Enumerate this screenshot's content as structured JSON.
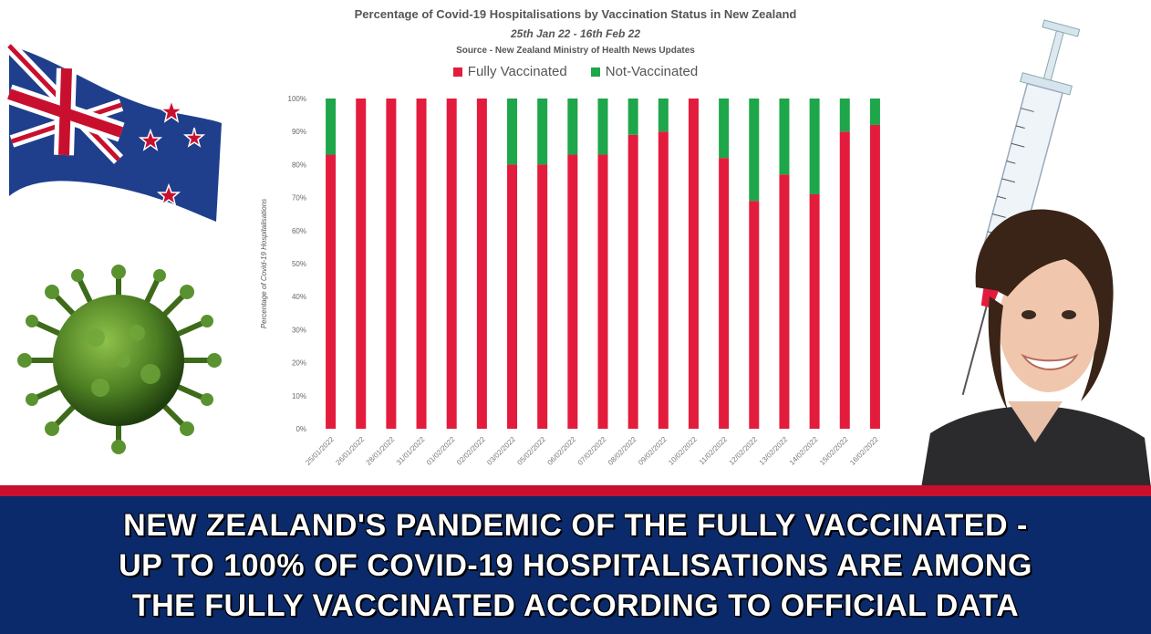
{
  "chart_data": {
    "type": "bar",
    "stacked": true,
    "title": "Percentage of Covid-19 Hospitalisations by Vaccination Status in New Zealand",
    "subtitle": "25th Jan 22 - 16th Feb 22",
    "source": "Source - New Zealand Ministry of Health News Updates",
    "ylabel": "Percentage of Covid-19 Hospitalisations",
    "ylim": [
      0,
      100
    ],
    "yticks": [
      "0%",
      "10%",
      "20%",
      "30%",
      "40%",
      "50%",
      "60%",
      "70%",
      "80%",
      "90%",
      "100%"
    ],
    "categories": [
      "25/01/2022",
      "26/01/2022",
      "28/01/2022",
      "31/01/2022",
      "01/02/2022",
      "02/02/2022",
      "03/02/2022",
      "05/02/2022",
      "06/02/2022",
      "07/02/2022",
      "08/02/2022",
      "09/02/2022",
      "10/02/2022",
      "11/02/2022",
      "12/02/2022",
      "13/02/2022",
      "14/02/2022",
      "15/02/2022",
      "16/02/2022"
    ],
    "series": [
      {
        "name": "Fully Vaccinated",
        "color": "#e31c3d",
        "values": [
          83,
          100,
          100,
          100,
          100,
          100,
          80,
          80,
          83,
          83,
          89,
          90,
          100,
          82,
          69,
          77,
          71,
          90,
          92
        ]
      },
      {
        "name": "Not-Vaccinated",
        "color": "#1ea64a",
        "values": [
          17,
          0,
          0,
          0,
          0,
          0,
          20,
          20,
          17,
          17,
          11,
          10,
          0,
          18,
          31,
          23,
          29,
          10,
          8
        ]
      }
    ],
    "legend": "top",
    "grid": false
  },
  "banner": {
    "line1": "NEW ZEALAND'S PANDEMIC OF THE FULLY VACCINATED  -",
    "line2": "UP TO 100% OF COVID-19 HOSPITALISATIONS ARE AMONG",
    "line3": "THE FULLY VACCINATED ACCORDING TO OFFICIAL DATA"
  },
  "images": {
    "flag": "new-zealand-flag-icon",
    "virus": "virus-icon",
    "syringe": "syringe-icon",
    "person": "person-photo"
  }
}
